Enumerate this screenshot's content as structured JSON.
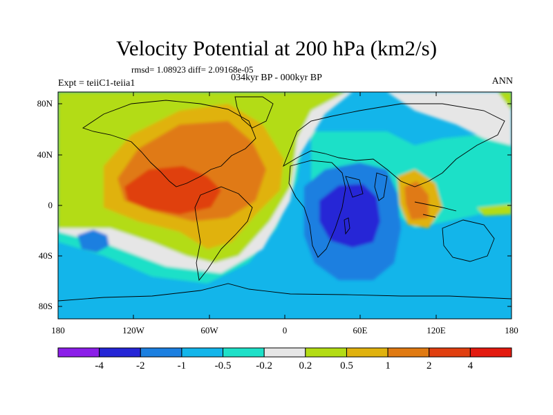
{
  "title": "Velocity Potential at 200 hPa (km2/s)",
  "stats": "rmsd= 1.08923 diff= 2.09168e-05",
  "period": "034kyr BP - 000kyr BP",
  "experiment": "Expt = teiiC1-teiia1",
  "season": "ANN",
  "y_ticks": [
    "80N",
    "40N",
    "0",
    "40S",
    "80S"
  ],
  "x_ticks": [
    "180",
    "120W",
    "60W",
    "0",
    "60E",
    "120E",
    "180"
  ],
  "colorbar": {
    "labels": [
      "-4",
      "-2",
      "-1",
      "-0.5",
      "-0.2",
      "0.2",
      "0.5",
      "1",
      "2",
      "4"
    ],
    "colors": [
      "#8b1ee8",
      "#2525d6",
      "#1b7fe0",
      "#13b5ea",
      "#1ee0c8",
      "#e6e6e6",
      "#b3dc14",
      "#e0b20e",
      "#e07a12",
      "#e03f10",
      "#e31a0f"
    ]
  }
}
